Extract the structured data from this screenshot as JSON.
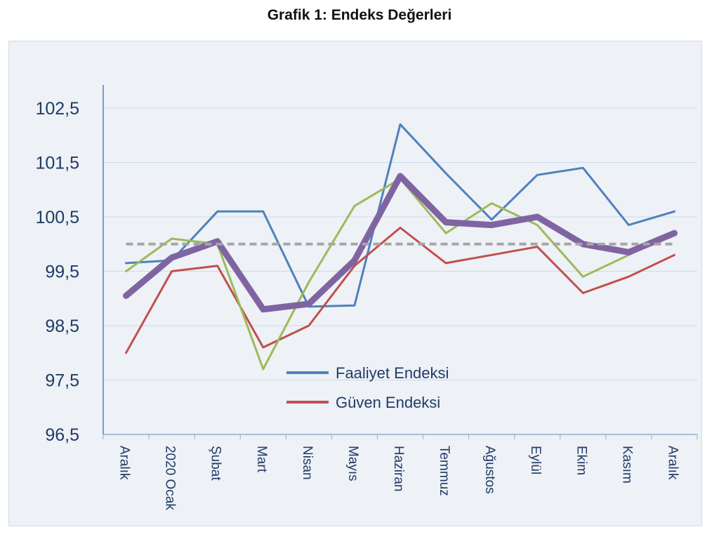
{
  "chart_data": {
    "type": "line",
    "title": "Grafik 1: Endeks Değerleri",
    "xlabel": "",
    "ylabel": "",
    "categories": [
      "Aralık",
      "2020 Ocak",
      "Şubat",
      "Mart",
      "Nisan",
      "Mayıs",
      "Haziran",
      "Temmuz",
      "Ağustos",
      "Eylül",
      "Ekim",
      "Kasım",
      "Aralık"
    ],
    "y_ticks": [
      "102,5",
      "101,5",
      "100,5",
      "99,5",
      "98,5",
      "97,5",
      "96,5"
    ],
    "y_tick_values": [
      102.5,
      101.5,
      100.5,
      99.5,
      98.5,
      97.5,
      96.5
    ],
    "ylim": [
      96.5,
      103.0
    ],
    "grid": true,
    "legend_position": "center",
    "series": [
      {
        "name": "Faaliyet Endeksi",
        "color": "#4f81bd",
        "width": 3,
        "dashed": false,
        "in_legend": true,
        "values": [
          99.65,
          99.7,
          100.6,
          100.6,
          98.85,
          98.87,
          102.2,
          101.3,
          100.45,
          101.27,
          101.4,
          100.35,
          100.6
        ]
      },
      {
        "name": "Güven Endeksi",
        "color": "#c0504d",
        "width": 3,
        "dashed": false,
        "in_legend": true,
        "values": [
          98.0,
          99.5,
          99.6,
          98.1,
          98.5,
          99.6,
          100.3,
          99.65,
          99.8,
          99.95,
          99.1,
          99.4,
          99.8
        ]
      },
      {
        "name": "",
        "color": "#9bbb59",
        "width": 3,
        "dashed": false,
        "in_legend": false,
        "values": [
          99.5,
          100.1,
          100.0,
          97.7,
          99.3,
          100.7,
          101.2,
          100.2,
          100.75,
          100.35,
          99.4,
          99.8,
          100.2
        ]
      },
      {
        "name": "",
        "color": "#8064a2",
        "width": 9,
        "dashed": false,
        "in_legend": false,
        "values": [
          99.05,
          99.75,
          100.05,
          98.8,
          98.9,
          99.7,
          101.25,
          100.4,
          100.35,
          100.5,
          100.0,
          99.85,
          100.2
        ]
      },
      {
        "name": "",
        "color": "#a6a6a6",
        "width": 4,
        "dashed": true,
        "in_legend": false,
        "values": [
          100.0,
          100.0,
          100.0,
          100.0,
          100.0,
          100.0,
          100.0,
          100.0,
          100.0,
          100.0,
          100.0,
          100.0,
          100.0
        ]
      }
    ]
  }
}
